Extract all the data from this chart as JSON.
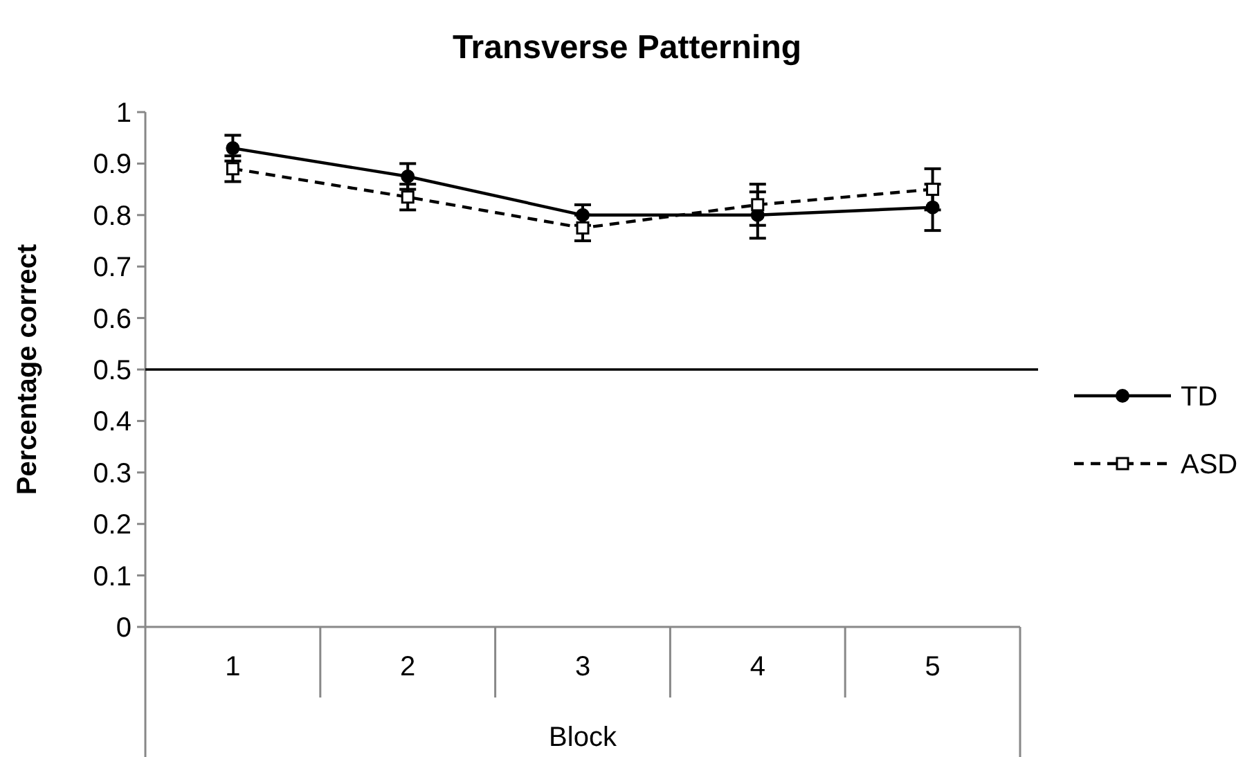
{
  "chart_data": {
    "type": "line",
    "title": "Transverse Patterning",
    "xlabel": "Block",
    "ylabel": "Percentage correct",
    "categories": [
      "1",
      "2",
      "3",
      "4",
      "5"
    ],
    "series": [
      {
        "name": "TD",
        "color": "#000000",
        "marker": "circle",
        "line_style": "solid",
        "values": [
          0.93,
          0.875,
          0.8,
          0.8,
          0.815
        ],
        "errors": [
          0.025,
          0.025,
          0.02,
          0.045,
          0.045
        ]
      },
      {
        "name": "ASD",
        "color": "#000000",
        "marker": "square",
        "line_style": "dashed",
        "values": [
          0.89,
          0.835,
          0.775,
          0.82,
          0.85
        ],
        "errors": [
          0.025,
          0.025,
          0.025,
          0.04,
          0.04
        ]
      }
    ],
    "ylim": [
      0,
      1
    ],
    "yticks": [
      0,
      0.1,
      0.2,
      0.3,
      0.4,
      0.5,
      0.6,
      0.7,
      0.8,
      0.9,
      1
    ],
    "ref_lines": [
      {
        "axis": "y",
        "value": 0.5,
        "color": "#000000"
      }
    ],
    "legend": "right",
    "grid": false
  }
}
